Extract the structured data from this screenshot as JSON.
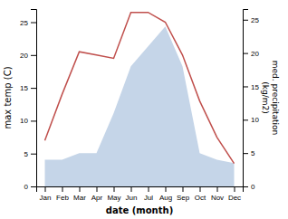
{
  "chart_data": {
    "type": "line",
    "xlabel": "date (month)",
    "ylabel": "max temp (C)",
    "y2label": "med. precipitation\n(kg/m2)",
    "categories": [
      "Jan",
      "Feb",
      "Mar",
      "Apr",
      "May",
      "Jun",
      "Jul",
      "Aug",
      "Sep",
      "Oct",
      "Nov",
      "Dec"
    ],
    "series": [
      {
        "type": "area",
        "axis": "y2",
        "color": "#c5d5e8",
        "values": [
          4,
          4,
          5,
          5,
          11,
          18,
          21,
          24,
          18,
          5,
          4,
          3.5
        ]
      },
      {
        "type": "line",
        "color": "#c0504d",
        "values": [
          7,
          14,
          20.5,
          20,
          19.5,
          26.5,
          26.5,
          25,
          20,
          13,
          7.5,
          3.5
        ]
      }
    ],
    "ylim": [
      0,
      27
    ],
    "yticks": [
      0,
      5,
      10,
      15,
      20,
      25
    ],
    "y2lim": [
      0,
      26.6
    ],
    "y2ticks": [
      0,
      5,
      10,
      15,
      20,
      25
    ],
    "grid": false
  }
}
